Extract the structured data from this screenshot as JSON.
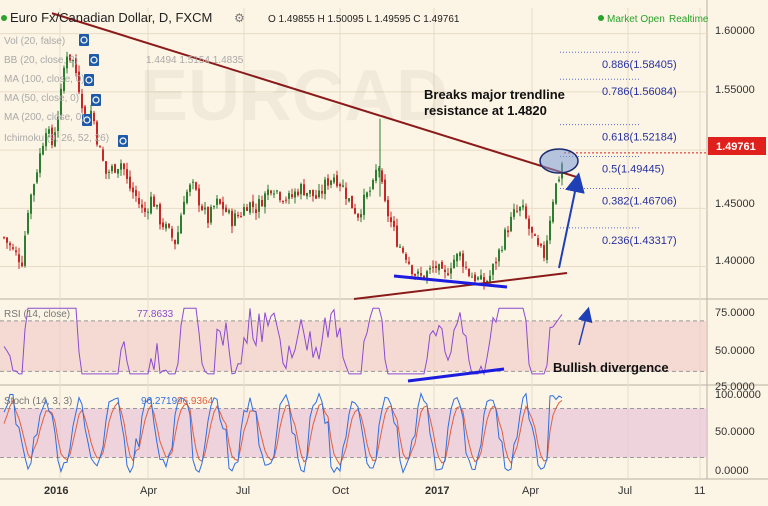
{
  "header": {
    "symbol": "Euro Fx/Canadian Dollar, D, FXCM",
    "ohlc": "O 1.49855 H 1.50095 L 1.49595 C 1.49761",
    "market_status": "Market Open",
    "realtime": "Realtime"
  },
  "watermark": "EURCAD",
  "indicators": [
    {
      "label": "Vol (20, false)"
    },
    {
      "label": "BB (20, close, 2)",
      "values": "1.4494 1.5154 1.4835"
    },
    {
      "label": "MA (100, close, 0)"
    },
    {
      "label": "MA (50, close, 0)"
    },
    {
      "label": "MA (200, close, 0)"
    },
    {
      "label": "Ichimoku (9, 26, 52, 26)"
    }
  ],
  "price_axis": {
    "ticks": [
      "1.60000",
      "1.55000",
      "1.50000",
      "1.45000",
      "1.40000"
    ],
    "current_price": "1.49761",
    "current_price_color": "#e0201c"
  },
  "fib_levels": [
    {
      "label": "0.886(1.58405)",
      "value": 1.58405
    },
    {
      "label": "0.786(1.56084)",
      "value": 1.56084
    },
    {
      "label": "0.618(1.52184)",
      "value": 1.52184
    },
    {
      "label": "0.5(1.49445)",
      "value": 1.49445
    },
    {
      "label": "0.382(1.46706)",
      "value": 1.46706
    },
    {
      "label": "0.236(1.43317)",
      "value": 1.43317
    }
  ],
  "annotations": {
    "trendline_break": "Breaks major trendline\nresistance at 1.4820",
    "divergence": "Bullish divergence"
  },
  "rsi": {
    "label": "RSI (14, close)",
    "value": "77.8633",
    "ticks": [
      "75.0000",
      "50.0000",
      "25.0000"
    ],
    "line_color": "#8c4bd0"
  },
  "stoch": {
    "label": "Stoch (14, 3, 3)",
    "k_value": "96.2719",
    "d_value": "96.9364",
    "ticks": [
      "100.0000",
      "50.0000",
      "0.0000"
    ],
    "k_color": "#2f6ee0",
    "d_color": "#e06040"
  },
  "time_axis": {
    "labels": [
      "2016",
      "Apr",
      "Jul",
      "Oct",
      "2017",
      "Apr",
      "Jul",
      "11"
    ]
  },
  "colors": {
    "background": "#fcf4e4",
    "candle_up": "#2e7d32",
    "candle_down": "#c62828",
    "trendline": "#8b1a1a",
    "support_line": "#1c1ce0",
    "arrow": "#1f3fb4",
    "rsi_band": "#f0c8c8",
    "stoch_band": "#e8c4d8",
    "fib_line": "#5b6ed0",
    "fib_text": "#2630a0",
    "market_dot": "#29a329"
  },
  "chart_data": [
    {
      "type": "candlestick",
      "title": "Euro Fx/Canadian Dollar, D, FXCM",
      "x": [
        "2016",
        "Apr",
        "Jul",
        "Oct",
        "2017",
        "Apr",
        "Jul",
        "11"
      ],
      "ylim": [
        1.373,
        1.622
      ],
      "points": [
        {
          "date": "2016-01",
          "close": 1.42
        },
        {
          "date": "2016-02",
          "close": 1.585
        },
        {
          "date": "2016-03",
          "close": 1.485
        },
        {
          "date": "2016-04",
          "close": 1.43
        },
        {
          "date": "2016-05",
          "close": 1.455
        },
        {
          "date": "2016-06",
          "close": 1.445
        },
        {
          "date": "2016-07",
          "close": 1.458
        },
        {
          "date": "2016-08",
          "close": 1.462
        },
        {
          "date": "2016-09",
          "close": 1.468
        },
        {
          "date": "2016-10",
          "close": 1.46
        },
        {
          "date": "2016-11",
          "close": 1.47
        },
        {
          "date": "2016-12",
          "close": 1.405
        },
        {
          "date": "2017-01",
          "close": 1.398
        },
        {
          "date": "2017-02",
          "close": 1.385
        },
        {
          "date": "2017-03",
          "close": 1.44
        },
        {
          "date": "2017-04",
          "close": 1.41
        },
        {
          "date": "2017-05",
          "close": 1.4976
        }
      ],
      "trendline": {
        "start": {
          "date": "2016-01",
          "value": 1.6175
        },
        "end": {
          "date": "2017-05",
          "value": 1.4765
        }
      },
      "fib_levels": [
        1.58405,
        1.56084,
        1.52184,
        1.49445,
        1.46706,
        1.43317
      ],
      "current_price": 1.49761
    },
    {
      "type": "line",
      "title": "RSI (14, close)",
      "ylim": [
        20,
        85
      ],
      "bands": [
        30,
        70
      ],
      "current": 77.8633
    },
    {
      "type": "line",
      "title": "Stoch (14, 3, 3)",
      "ylim": [
        0,
        100
      ],
      "bands": [
        20,
        80
      ],
      "series": [
        {
          "name": "%K",
          "current": 96.2719
        },
        {
          "name": "%D",
          "current": 96.9364
        }
      ]
    }
  ]
}
